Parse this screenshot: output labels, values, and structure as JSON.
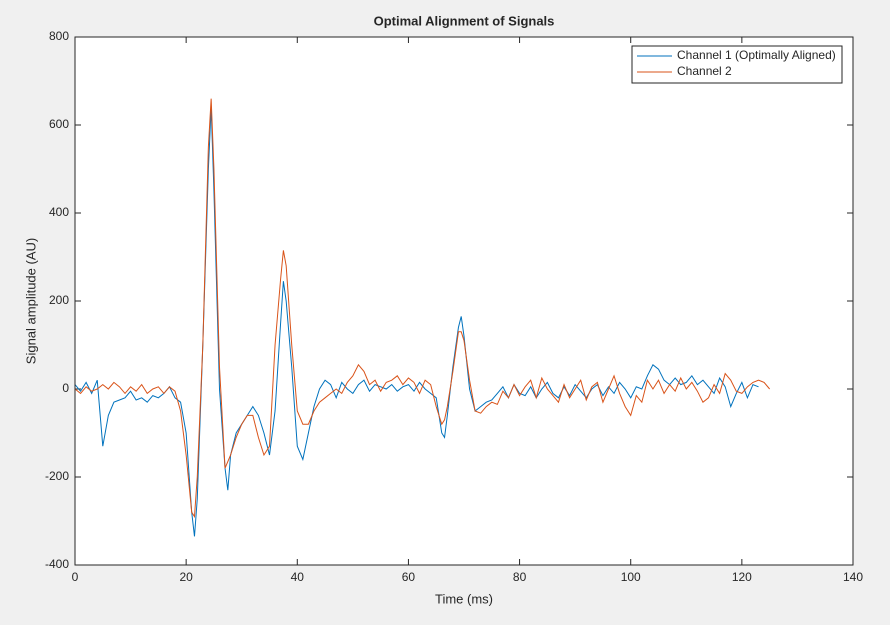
{
  "chart_data": {
    "type": "line",
    "title": "Optimal Alignment of Signals",
    "x_label": "Time (ms)",
    "y_label": "Signal amplitude (AU)",
    "x": [
      0,
      1,
      2,
      3,
      4,
      5,
      6,
      7,
      8,
      9,
      10,
      11,
      12,
      13,
      14,
      15,
      16,
      17,
      18,
      19,
      20,
      21,
      21.5,
      22,
      23,
      24,
      24.5,
      25,
      26,
      27,
      27.5,
      28,
      29,
      30,
      31,
      32,
      33,
      34,
      35,
      36,
      37,
      37.5,
      38,
      39,
      40,
      41,
      42,
      43,
      44,
      45,
      46,
      47,
      48,
      49,
      50,
      51,
      52,
      53,
      54,
      55,
      56,
      57,
      58,
      59,
      60,
      61,
      62,
      63,
      64,
      65,
      66,
      66.5,
      67,
      68,
      69,
      69.5,
      70,
      71,
      72,
      73,
      74,
      75,
      76,
      77,
      78,
      79,
      80,
      81,
      82,
      83,
      84,
      85,
      86,
      87,
      88,
      89,
      90,
      91,
      92,
      93,
      94,
      95,
      96,
      97,
      98,
      99,
      100,
      101,
      102,
      103,
      104,
      105,
      106,
      107,
      108,
      109,
      110,
      111,
      112,
      113,
      114,
      115,
      116,
      117,
      118,
      119,
      120,
      121,
      122,
      123,
      124,
      125
    ],
    "series": [
      {
        "name": "Channel 1 (Optimally Aligned)",
        "color": "#0072bd",
        "values": [
          10,
          -5,
          15,
          -10,
          20,
          -130,
          -60,
          -30,
          -25,
          -20,
          -5,
          -25,
          -20,
          -30,
          -15,
          -20,
          -10,
          5,
          -20,
          -30,
          -100,
          -280,
          -335,
          -250,
          100,
          500,
          640,
          450,
          0,
          -180,
          -230,
          -150,
          -100,
          -80,
          -60,
          -40,
          -60,
          -100,
          -150,
          -50,
          150,
          245,
          200,
          50,
          -130,
          -160,
          -100,
          -40,
          0,
          20,
          10,
          -20,
          15,
          0,
          -10,
          10,
          20,
          -5,
          10,
          5,
          0,
          10,
          -5,
          5,
          10,
          -5,
          15,
          0,
          -10,
          -20,
          -100,
          -110,
          -60,
          50,
          140,
          165,
          120,
          0,
          -50,
          -40,
          -30,
          -25,
          -10,
          5,
          -20,
          10,
          -10,
          -15,
          5,
          -20,
          0,
          15,
          -10,
          -20,
          5,
          -15,
          10,
          -5,
          -20,
          0,
          10,
          -15,
          5,
          -10,
          15,
          0,
          -20,
          5,
          0,
          30,
          55,
          45,
          20,
          10,
          25,
          10,
          15,
          30,
          10,
          20,
          5,
          -10,
          25,
          5,
          -40,
          -10,
          15,
          -20,
          10,
          5,
          null,
          null
        ]
      },
      {
        "name": "Channel 2",
        "color": "#d95319",
        "values": [
          0,
          -10,
          5,
          -5,
          0,
          10,
          0,
          15,
          5,
          -10,
          5,
          -5,
          10,
          -10,
          0,
          5,
          -10,
          5,
          -5,
          -50,
          -150,
          -280,
          -290,
          -200,
          100,
          550,
          660,
          500,
          50,
          -180,
          -165,
          -150,
          -110,
          -80,
          -60,
          -60,
          -110,
          -150,
          -130,
          100,
          250,
          315,
          280,
          100,
          -50,
          -80,
          -80,
          -50,
          -30,
          -20,
          -10,
          0,
          -10,
          15,
          30,
          55,
          40,
          10,
          20,
          -5,
          15,
          20,
          30,
          10,
          25,
          15,
          -10,
          20,
          10,
          -40,
          -80,
          -70,
          -40,
          40,
          130,
          130,
          110,
          20,
          -50,
          -55,
          -40,
          -30,
          -35,
          -5,
          -20,
          10,
          -15,
          5,
          20,
          -20,
          25,
          0,
          -15,
          -30,
          10,
          -20,
          0,
          20,
          -25,
          5,
          15,
          -30,
          0,
          30,
          -10,
          -40,
          -60,
          -15,
          -30,
          20,
          0,
          20,
          -10,
          10,
          -5,
          25,
          0,
          15,
          -5,
          -30,
          -20,
          10,
          -10,
          35,
          20,
          -5,
          -10,
          5,
          15,
          20,
          15,
          0
        ]
      }
    ],
    "xlim": [
      0,
      140
    ],
    "xticks": [
      0,
      20,
      40,
      60,
      80,
      100,
      120,
      140
    ],
    "ylim": [
      -400,
      800
    ],
    "yticks": [
      -400,
      -200,
      0,
      200,
      400,
      600,
      800
    ],
    "legend": "upper right"
  }
}
